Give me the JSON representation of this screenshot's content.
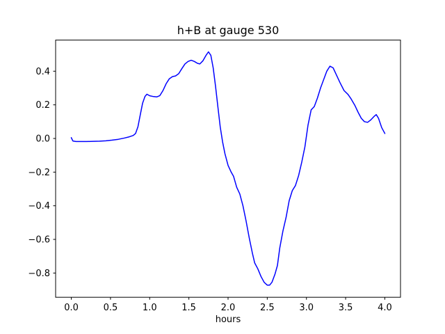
{
  "chart_data": {
    "type": "line",
    "title": "h+B at gauge 530",
    "xlabel": "hours",
    "ylabel": "",
    "grid": false,
    "legend": null,
    "background_color": "#ffffff",
    "axis_color": "#000000",
    "xlim": [
      -0.2,
      4.2
    ],
    "ylim": [
      -0.944,
      0.585
    ],
    "x_ticks": {
      "values": [
        0.0,
        0.5,
        1.0,
        1.5,
        2.0,
        2.5,
        3.0,
        3.5,
        4.0
      ],
      "labels": [
        "0.0",
        "0.5",
        "1.0",
        "1.5",
        "2.0",
        "2.5",
        "3.0",
        "3.5",
        "4.0"
      ]
    },
    "y_ticks": {
      "values": [
        0.4,
        0.2,
        0.0,
        -0.2,
        -0.4,
        -0.6,
        -0.8
      ],
      "labels": [
        "0.4",
        "0.2",
        "0.0",
        "−0.2",
        "−0.4",
        "−0.6",
        "−0.8"
      ]
    },
    "series": [
      {
        "name": "h+B",
        "color": "#0000ff",
        "line_width": 1.5,
        "x": [
          0.0,
          0.02,
          0.06,
          0.12,
          0.2,
          0.28,
          0.36,
          0.44,
          0.52,
          0.6,
          0.68,
          0.74,
          0.79,
          0.82,
          0.85,
          0.88,
          0.91,
          0.94,
          0.965,
          1.0,
          1.05,
          1.09,
          1.13,
          1.17,
          1.21,
          1.25,
          1.29,
          1.33,
          1.37,
          1.41,
          1.45,
          1.49,
          1.53,
          1.57,
          1.61,
          1.64,
          1.68,
          1.72,
          1.75,
          1.78,
          1.81,
          1.84,
          1.87,
          1.9,
          1.93,
          1.96,
          2.0,
          2.04,
          2.07,
          2.11,
          2.15,
          2.19,
          2.23,
          2.27,
          2.31,
          2.34,
          2.38,
          2.42,
          2.46,
          2.5,
          2.53,
          2.56,
          2.6,
          2.63,
          2.66,
          2.7,
          2.74,
          2.78,
          2.82,
          2.86,
          2.9,
          2.94,
          2.98,
          3.02,
          3.06,
          3.1,
          3.14,
          3.18,
          3.22,
          3.26,
          3.3,
          3.34,
          3.38,
          3.43,
          3.48,
          3.53,
          3.57,
          3.62,
          3.66,
          3.7,
          3.74,
          3.78,
          3.82,
          3.86,
          3.89,
          3.92,
          3.96,
          4.0
        ],
        "y": [
          0.005,
          -0.015,
          -0.018,
          -0.018,
          -0.018,
          -0.017,
          -0.016,
          -0.014,
          -0.01,
          -0.005,
          0.003,
          0.01,
          0.018,
          0.03,
          0.07,
          0.14,
          0.21,
          0.25,
          0.263,
          0.254,
          0.249,
          0.247,
          0.255,
          0.285,
          0.325,
          0.355,
          0.368,
          0.372,
          0.385,
          0.415,
          0.443,
          0.458,
          0.465,
          0.458,
          0.447,
          0.443,
          0.462,
          0.495,
          0.515,
          0.495,
          0.42,
          0.31,
          0.19,
          0.07,
          -0.02,
          -0.09,
          -0.16,
          -0.2,
          -0.225,
          -0.29,
          -0.33,
          -0.4,
          -0.49,
          -0.59,
          -0.68,
          -0.74,
          -0.775,
          -0.82,
          -0.855,
          -0.872,
          -0.872,
          -0.855,
          -0.805,
          -0.755,
          -0.65,
          -0.55,
          -0.47,
          -0.37,
          -0.31,
          -0.28,
          -0.22,
          -0.14,
          -0.05,
          0.08,
          0.17,
          0.19,
          0.24,
          0.3,
          0.35,
          0.4,
          0.43,
          0.42,
          0.38,
          0.33,
          0.285,
          0.262,
          0.235,
          0.195,
          0.155,
          0.12,
          0.1,
          0.096,
          0.11,
          0.13,
          0.142,
          0.12,
          0.065,
          0.03
        ]
      }
    ]
  }
}
